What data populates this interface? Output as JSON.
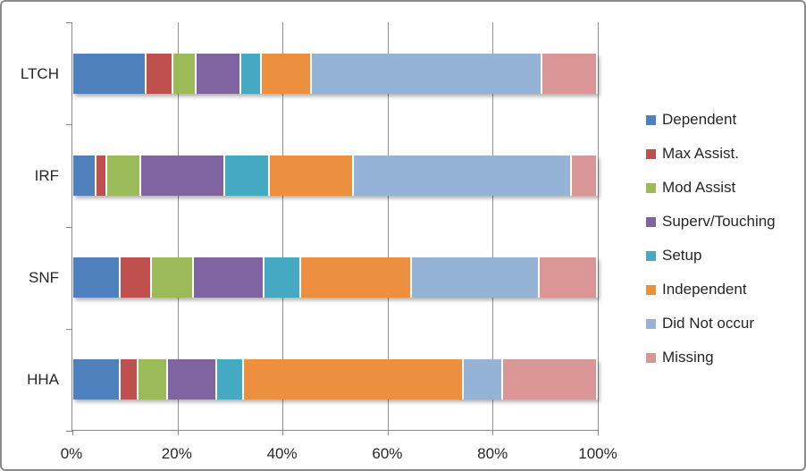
{
  "chart_data": {
    "type": "bar",
    "orientation": "horizontal",
    "stacked": true,
    "title": "",
    "categories": [
      "LTCH",
      "IRF",
      "SNF",
      "HHA"
    ],
    "series": [
      {
        "name": "Dependent",
        "color": "#4F81BD",
        "values": [
          14,
          4.5,
          9,
          9
        ]
      },
      {
        "name": "Max Assist.",
        "color": "#C0504D",
        "values": [
          5,
          2,
          6,
          3.5
        ]
      },
      {
        "name": "Mod Assist",
        "color": "#9BBB59",
        "values": [
          4.5,
          6.5,
          8,
          5.5
        ]
      },
      {
        "name": "Superv/Touching",
        "color": "#8064A2",
        "values": [
          8.5,
          16,
          13.5,
          9.5
        ]
      },
      {
        "name": "Setup",
        "color": "#45A9C4",
        "values": [
          4,
          8.5,
          7,
          5
        ]
      },
      {
        "name": "Independent",
        "color": "#EC8F3F",
        "values": [
          9.5,
          16,
          21,
          42
        ]
      },
      {
        "name": "Did Not occur",
        "color": "#95B3D7",
        "values": [
          44,
          41.5,
          24.5,
          7.5
        ]
      },
      {
        "name": "Missing",
        "color": "#D99694",
        "values": [
          10.5,
          5,
          11,
          18
        ]
      }
    ],
    "x_axis": {
      "min": 0,
      "max": 100,
      "tick_values": [
        0,
        20,
        40,
        60,
        80,
        100
      ],
      "tick_labels": [
        "0%",
        "20%",
        "40%",
        "60%",
        "80%",
        "100%"
      ]
    },
    "legend": {
      "position": "right"
    },
    "grid": true,
    "ylabel": "",
    "xlabel": ""
  },
  "styles": {
    "grid_color": "#919191",
    "axis_color": "#898989",
    "text_color": "#262626",
    "frame_border": "#8a8a8a",
    "background": "#ffffff"
  }
}
